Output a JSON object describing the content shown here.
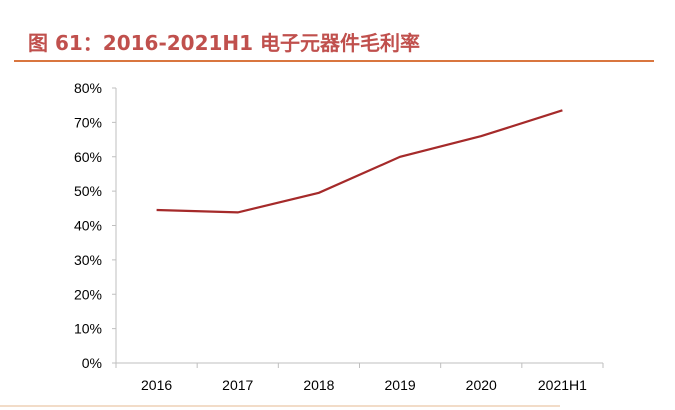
{
  "title": "图 61：2016-2021H1 电子元器件毛利率",
  "colors": {
    "title": "#c0504d",
    "rule": "#d9763f",
    "series": "#a52a2a",
    "axis": "#bfbfbf"
  },
  "chart_data": {
    "type": "line",
    "title": "图 61：2016-2021H1 电子元器件毛利率",
    "xlabel": "",
    "ylabel": "",
    "categories": [
      "2016",
      "2017",
      "2018",
      "2019",
      "2020",
      "2021H1"
    ],
    "series": [
      {
        "values": [
          44.5,
          43.8,
          49.5,
          60.0,
          66.0,
          73.5
        ]
      }
    ],
    "ylim": [
      0,
      80
    ],
    "yticks": [
      "0%",
      "10%",
      "20%",
      "30%",
      "40%",
      "50%",
      "60%",
      "70%",
      "80%"
    ],
    "grid": false,
    "legend": "none"
  }
}
